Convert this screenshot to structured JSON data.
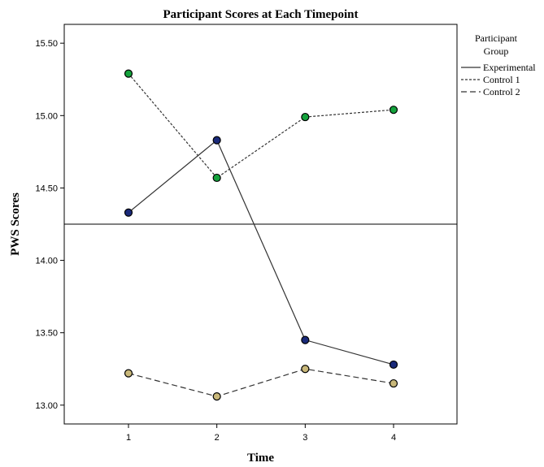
{
  "chart_data": {
    "type": "line",
    "title": "Participant Scores at Each Timepoint",
    "xlabel": "Time",
    "ylabel": "PWS Scores",
    "categories": [
      "1",
      "2",
      "3",
      "4"
    ],
    "ylim": [
      12.87,
      15.63
    ],
    "yticks": [
      13.0,
      13.5,
      14.0,
      14.5,
      15.0,
      15.5
    ],
    "ytick_labels": [
      "13.00",
      "13.50",
      "14.00",
      "14.50",
      "15.00",
      "15.50"
    ],
    "reference_line": 14.25,
    "grid": false,
    "legend_title": [
      "Participant",
      "Group"
    ],
    "legend_position": "right",
    "series": [
      {
        "name": "Experimental",
        "values": [
          14.33,
          14.83,
          13.45,
          13.28
        ],
        "line_style": "solid",
        "marker_color": "#1a2a7a"
      },
      {
        "name": "Control 1",
        "values": [
          15.29,
          14.57,
          14.99,
          15.04
        ],
        "line_style": "dotted",
        "marker_color": "#14a23c"
      },
      {
        "name": "Control 2",
        "values": [
          13.22,
          13.06,
          13.25,
          13.15
        ],
        "line_style": "dashed",
        "marker_color": "#c9b87a"
      }
    ]
  }
}
